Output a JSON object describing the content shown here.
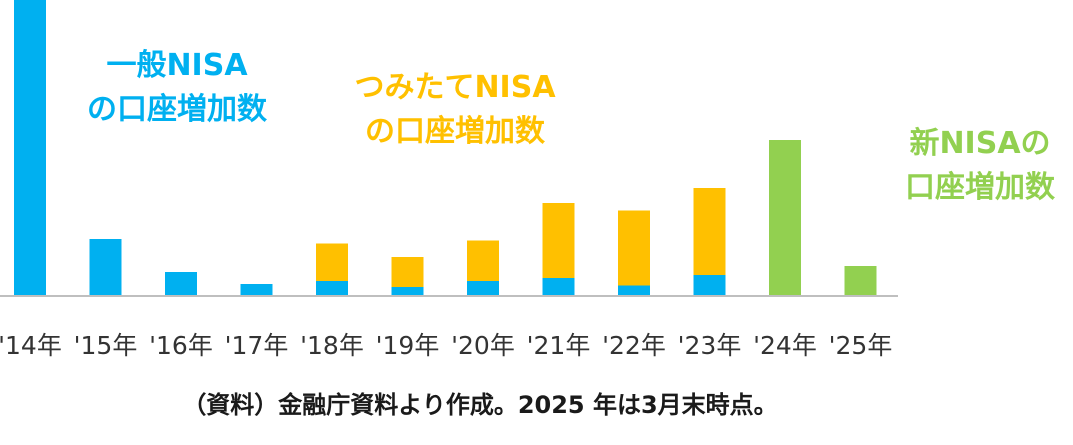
{
  "chart_data": {
    "type": "bar",
    "stacked": true,
    "categories": [
      "'14年",
      "'15年",
      "'16年",
      "'17年",
      "'18年",
      "'19年",
      "'20年",
      "'21年",
      "'22年",
      "'23年",
      "'24年",
      "'25年"
    ],
    "series": [
      {
        "name": "一般NISAの口座増加数",
        "color": "#00b0f0",
        "values": [
          100,
          19,
          8,
          4,
          5,
          3,
          5,
          6,
          3.5,
          7,
          0,
          0
        ]
      },
      {
        "name": "つみたてNISAの口座増加数",
        "color": "#ffc000",
        "values": [
          0,
          0,
          0,
          0,
          12.5,
          10,
          13.5,
          25,
          25,
          29,
          0,
          0
        ]
      },
      {
        "name": "新NISAの口座増加数",
        "color": "#92d050",
        "values": [
          0,
          0,
          0,
          0,
          0,
          0,
          0,
          0,
          0,
          0,
          52,
          10
        ]
      }
    ],
    "ylim": [
      0,
      100
    ],
    "grid": false,
    "xlabel": "",
    "ylabel": ""
  },
  "annotations": {
    "general": [
      "一般NISA",
      "の口座増加数"
    ],
    "tsumitate": [
      "つみたてNISA",
      "の口座増加数"
    ],
    "new": [
      "新NISAの",
      "口座増加数"
    ]
  },
  "source": "（資料）金融庁資料より作成。2025 年は3月末時点。"
}
